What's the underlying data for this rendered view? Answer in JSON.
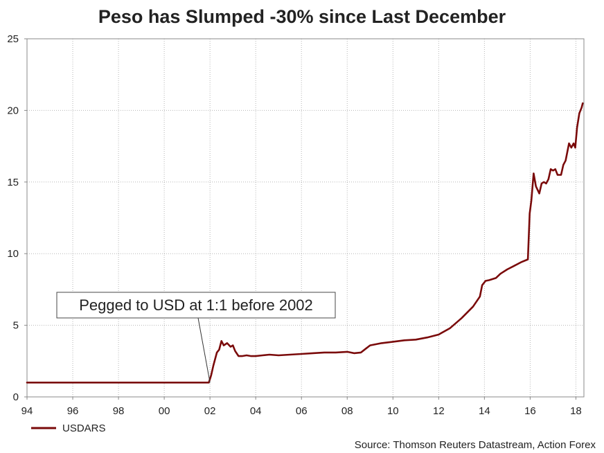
{
  "chart_data": {
    "type": "line",
    "title": "Peso has Slumped -30% since Last December",
    "xlabel": "",
    "ylabel": "",
    "xlim": [
      1994,
      2018.35
    ],
    "ylim": [
      0,
      25
    ],
    "grid": true,
    "x_ticks": [
      {
        "value": 1994,
        "label": "94"
      },
      {
        "value": 1996,
        "label": "96"
      },
      {
        "value": 1998,
        "label": "98"
      },
      {
        "value": 2000,
        "label": "00"
      },
      {
        "value": 2002,
        "label": "02"
      },
      {
        "value": 2004,
        "label": "04"
      },
      {
        "value": 2006,
        "label": "06"
      },
      {
        "value": 2008,
        "label": "08"
      },
      {
        "value": 2010,
        "label": "10"
      },
      {
        "value": 2012,
        "label": "12"
      },
      {
        "value": 2014,
        "label": "14"
      },
      {
        "value": 2016,
        "label": "16"
      },
      {
        "value": 2018,
        "label": "18"
      }
    ],
    "y_ticks": [
      {
        "value": 0,
        "label": "0"
      },
      {
        "value": 5,
        "label": "5"
      },
      {
        "value": 10,
        "label": "10"
      },
      {
        "value": 15,
        "label": "15"
      },
      {
        "value": 20,
        "label": "20"
      },
      {
        "value": 25,
        "label": "25"
      }
    ],
    "series": [
      {
        "name": "USDARS",
        "color": "#7a0a0a",
        "x": [
          1994.0,
          2001.95,
          2002.05,
          2002.15,
          2002.3,
          2002.4,
          2002.5,
          2002.6,
          2002.75,
          2002.9,
          2003.0,
          2003.1,
          2003.25,
          2003.4,
          2003.6,
          2003.8,
          2004.0,
          2004.3,
          2004.6,
          2005.0,
          2005.5,
          2006.0,
          2006.5,
          2007.0,
          2007.5,
          2008.0,
          2008.3,
          2008.6,
          2008.8,
          2009.0,
          2009.5,
          2010.0,
          2010.5,
          2011.0,
          2011.5,
          2012.0,
          2012.5,
          2013.0,
          2013.5,
          2013.8,
          2013.9,
          2014.0,
          2014.05,
          2014.2,
          2014.5,
          2014.7,
          2015.0,
          2015.3,
          2015.6,
          2015.9,
          2015.98,
          2016.05,
          2016.15,
          2016.25,
          2016.4,
          2016.5,
          2016.6,
          2016.7,
          2016.8,
          2016.9,
          2017.0,
          2017.1,
          2017.2,
          2017.35,
          2017.45,
          2017.55,
          2017.7,
          2017.8,
          2017.9,
          2017.97,
          2018.05,
          2018.15,
          2018.25,
          2018.3
        ],
        "values": [
          1.0,
          1.0,
          1.5,
          2.2,
          3.1,
          3.3,
          3.9,
          3.6,
          3.75,
          3.5,
          3.6,
          3.2,
          2.85,
          2.85,
          2.9,
          2.85,
          2.85,
          2.9,
          2.95,
          2.9,
          2.95,
          3.0,
          3.05,
          3.1,
          3.1,
          3.15,
          3.05,
          3.1,
          3.35,
          3.6,
          3.75,
          3.85,
          3.95,
          4.0,
          4.15,
          4.35,
          4.8,
          5.5,
          6.3,
          7.0,
          7.8,
          8.0,
          8.1,
          8.15,
          8.3,
          8.6,
          8.9,
          9.15,
          9.4,
          9.6,
          12.8,
          13.7,
          15.6,
          14.7,
          14.2,
          14.9,
          15.0,
          14.9,
          15.2,
          15.9,
          15.8,
          15.9,
          15.5,
          15.5,
          16.2,
          16.5,
          17.7,
          17.4,
          17.7,
          17.4,
          18.8,
          19.8,
          20.2,
          20.5
        ]
      }
    ],
    "annotation": {
      "text": "Pegged to USD at 1:1 before 2002",
      "points_to": {
        "x": 2002.0,
        "y": 1.0
      }
    },
    "legend": {
      "position": "bottom-left",
      "entries": [
        "USDARS"
      ]
    },
    "source": "Source: Thomson Reuters Datastream, Action Forex"
  }
}
